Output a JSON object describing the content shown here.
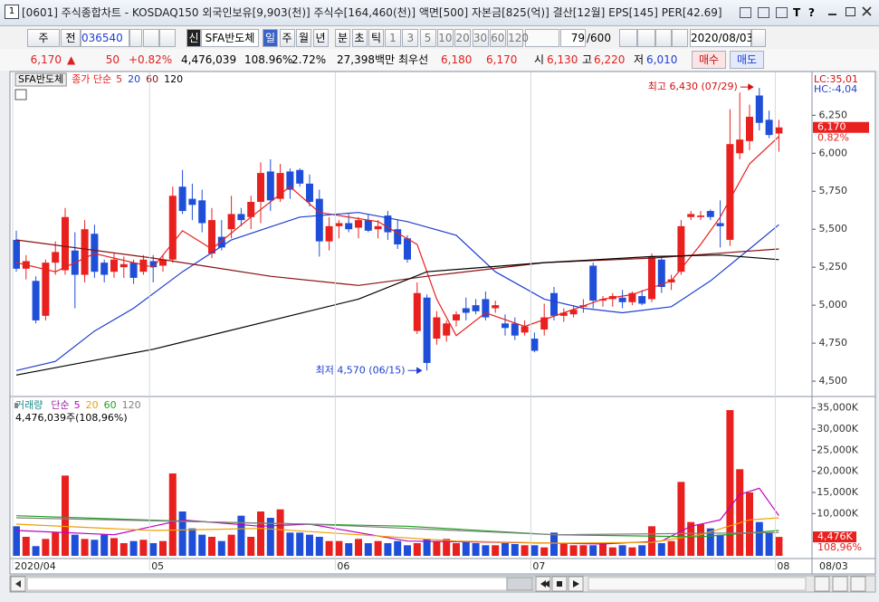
{
  "header": {
    "icon": "1",
    "title": "[0601] 주식종합차트 - KOSDAQ150 외국인보유[9,903(천)] 주식수[164,460(천)] 액면[500] 자본금[825(억)] 결산[12월] EPS[145] PER[42.69]",
    "tools": [
      "T",
      "?"
    ]
  },
  "toolbar": {
    "period": "주",
    "prev": "전",
    "code": "036540",
    "badge": "신",
    "name": "SFA반도체",
    "units": [
      "일",
      "주",
      "월",
      "년",
      "분",
      "초",
      "틱"
    ],
    "intervals": [
      "1",
      "3",
      "5",
      "10",
      "20",
      "30",
      "60",
      "120"
    ],
    "count": "79",
    "max": "/600",
    "date": "2020/08/03"
  },
  "quote": {
    "price": "6,170",
    "arrow": "▲",
    "change": "50",
    "rate": "+0.82%",
    "volume": "4,476,039",
    "volume_ratio": "108.96%",
    "turnover": "2.72%",
    "amount": "27,398백만",
    "best_label": "최우선",
    "ask": "6,180",
    "bid": "6,170",
    "open_label": "시",
    "open": "6,130",
    "high_label": "고",
    "high": "6,220",
    "low_label": "저",
    "low": "6,010",
    "buy": "매수",
    "sell": "매도"
  },
  "chart_data": [
    {
      "type": "candlestick",
      "legend_title": "SFA반도체",
      "legend_label": "종가 단순",
      "legend_label_color": "#e8201e",
      "up_color": "#e8201e",
      "down_color": "#1f4fd8",
      "open": [
        5430,
        5240,
        5160,
        4930,
        5280,
        5230,
        5360,
        5200,
        5470,
        5280,
        5220,
        5250,
        5280,
        5220,
        5290,
        5260,
        5300,
        5780,
        5700,
        5690,
        5340,
        5450,
        5500,
        5600,
        5580,
        5680,
        5880,
        5700,
        5880,
        5890,
        5800,
        5700,
        5420,
        5520,
        5540,
        5510,
        5560,
        5500,
        5590,
        5500,
        5440,
        4830,
        5050,
        4780,
        4800,
        4900,
        4980,
        5000,
        5040,
        4980,
        4880,
        4880,
        4820,
        4780,
        4840,
        5080,
        4930,
        4940,
        4990,
        5260,
        5030,
        5040,
        5050,
        5020,
        5060,
        5040,
        5300,
        5150,
        5220,
        5580,
        5580,
        5620,
        5540,
        5430,
        6000,
        6080,
        6380,
        6220,
        6130
      ],
      "high": [
        5490,
        5330,
        5190,
        5300,
        5420,
        5640,
        5480,
        5560,
        5530,
        5300,
        5340,
        5320,
        5300,
        5330,
        5330,
        5330,
        5780,
        5890,
        5800,
        5760,
        5640,
        5560,
        5720,
        5640,
        5720,
        5940,
        5960,
        5930,
        5900,
        5900,
        5860,
        5760,
        5580,
        5560,
        5600,
        5580,
        5600,
        5560,
        5620,
        5560,
        5460,
        5150,
        5070,
        4960,
        4900,
        4960,
        5050,
        5040,
        5090,
        5030,
        4940,
        4920,
        4900,
        4820,
        5010,
        5120,
        4980,
        5000,
        5040,
        5280,
        5060,
        5080,
        5100,
        5090,
        5100,
        5340,
        5320,
        5200,
        5560,
        5620,
        5620,
        5630,
        5690,
        6290,
        6400,
        6320,
        6430,
        6280,
        6220
      ],
      "low": [
        5220,
        5170,
        4880,
        4900,
        5200,
        5200,
        4980,
        5150,
        5180,
        5150,
        5180,
        5180,
        5140,
        5200,
        5150,
        5220,
        5280,
        5600,
        5560,
        5480,
        5310,
        5360,
        5440,
        5520,
        5500,
        5540,
        5620,
        5680,
        5700,
        5780,
        5650,
        5320,
        5360,
        5440,
        5480,
        5440,
        5480,
        5440,
        5430,
        5370,
        5280,
        4810,
        4570,
        4740,
        4760,
        4860,
        4900,
        4940,
        4900,
        4950,
        4800,
        4770,
        4800,
        4690,
        4800,
        4900,
        4890,
        4920,
        4950,
        4980,
        4990,
        4990,
        4980,
        5000,
        5000,
        5020,
        5080,
        5100,
        5200,
        5560,
        5560,
        5560,
        5380,
        5390,
        5960,
        6020,
        6150,
        6100,
        6010
      ],
      "close": [
        5240,
        5290,
        4900,
        5280,
        5350,
        5580,
        5200,
        5500,
        5220,
        5200,
        5300,
        5270,
        5180,
        5300,
        5250,
        5300,
        5720,
        5620,
        5660,
        5540,
        5560,
        5380,
        5600,
        5560,
        5680,
        5870,
        5690,
        5870,
        5760,
        5800,
        5680,
        5420,
        5520,
        5540,
        5500,
        5560,
        5490,
        5520,
        5480,
        5400,
        5300,
        5080,
        4620,
        4920,
        4880,
        4940,
        4950,
        4960,
        4920,
        5000,
        4850,
        4800,
        4860,
        4700,
        4920,
        4930,
        4950,
        4970,
        5000,
        5030,
        5040,
        5060,
        5020,
        5080,
        5010,
        5320,
        5120,
        5170,
        5520,
        5600,
        5590,
        5580,
        5520,
        6060,
        6090,
        6240,
        6200,
        6120,
        6170
      ],
      "series": [
        {
          "name": "5",
          "color": "#e8201e",
          "x": [
            0,
            4,
            8,
            14,
            17,
            20,
            24,
            28,
            31,
            37,
            41,
            43,
            45,
            48,
            52,
            56,
            60,
            63,
            67,
            70,
            72,
            75,
            78
          ],
          "values": [
            5280,
            5220,
            5340,
            5250,
            5490,
            5370,
            5580,
            5780,
            5610,
            5550,
            5400,
            5040,
            4800,
            4950,
            4860,
            4950,
            5040,
            5070,
            5160,
            5400,
            5580,
            5930,
            6110
          ]
        },
        {
          "name": "20",
          "color": "#1f3fd0",
          "x": [
            0,
            4,
            8,
            12,
            17,
            22,
            29,
            35,
            40,
            45,
            49,
            54,
            58,
            62,
            67,
            71,
            75,
            78
          ],
          "values": [
            4570,
            4630,
            4830,
            4980,
            5220,
            5430,
            5580,
            5610,
            5550,
            5460,
            5220,
            5040,
            4980,
            4950,
            4990,
            5160,
            5370,
            5530
          ]
        },
        {
          "name": "60",
          "color": "#8b1010",
          "x": [
            0,
            14,
            26,
            35,
            42,
            54,
            65,
            78
          ],
          "values": [
            5430,
            5310,
            5190,
            5130,
            5190,
            5280,
            5310,
            5370
          ]
        },
        {
          "name": "120",
          "color": "#000000",
          "x": [
            0,
            14,
            35,
            42,
            54,
            65,
            72,
            78
          ],
          "values": [
            4540,
            4710,
            5040,
            5220,
            5280,
            5320,
            5330,
            5300
          ]
        }
      ],
      "ylim": [
        4405,
        6520
      ],
      "yticks": [
        {
          "value": 4500,
          "label": "4,500"
        },
        {
          "value": 4750,
          "label": "4,750"
        },
        {
          "value": 5000,
          "label": "5,000"
        },
        {
          "value": 5250,
          "label": "5,250"
        },
        {
          "value": 5500,
          "label": "5,500"
        },
        {
          "value": 5750,
          "label": "5,750"
        },
        {
          "value": 6000,
          "label": "6,000"
        },
        {
          "value": 6250,
          "label": "6,250"
        }
      ],
      "high_label": "최고 6,430 (07/29)",
      "low_label": "최저 4,570 (06/15)",
      "lc_label": "LC:35,01",
      "hc_label": "HC:-4,04",
      "last_label": "6,170",
      "change_label": "0.82%"
    },
    {
      "type": "bar",
      "legend_title": "거래량",
      "legend_title_color": "#1a8a8a",
      "legend_label": "단순",
      "legend_label_color": "#a020a0",
      "info": "4,476,039주(108,96%)",
      "up_color": "#e8201e",
      "down_color": "#1f4fd8",
      "values": [
        7000,
        4500,
        2300,
        4000,
        5500,
        19000,
        5000,
        4000,
        3800,
        5000,
        4200,
        3000,
        3500,
        3800,
        3000,
        3500,
        19500,
        10500,
        6500,
        5000,
        4500,
        3500,
        5000,
        9500,
        4500,
        10500,
        9000,
        11000,
        5500,
        5500,
        5000,
        4500,
        3500,
        3500,
        3000,
        4000,
        3000,
        3500,
        3000,
        3500,
        2500,
        3000,
        4000,
        3500,
        4000,
        3000,
        3500,
        3000,
        2500,
        2500,
        3000,
        2800,
        2500,
        2500,
        2000,
        5500,
        3000,
        2500,
        2500,
        2500,
        3000,
        2000,
        2500,
        2000,
        2500,
        7000,
        3000,
        3500,
        17500,
        8000,
        7500,
        6500,
        5000,
        34500,
        20500,
        15000,
        8000,
        5500,
        4476
      ],
      "series": [
        {
          "name": "5",
          "color": "#c000c0",
          "x": [
            0,
            10,
            17,
            25,
            30,
            40,
            50,
            60,
            66,
            69,
            72,
            74,
            76,
            78
          ],
          "values": [
            6000,
            5000,
            8500,
            7000,
            7500,
            3500,
            3200,
            2800,
            3500,
            7000,
            8500,
            14500,
            16000,
            9500
          ]
        },
        {
          "name": "20",
          "color": "#f0a000",
          "x": [
            0,
            14,
            25,
            35,
            45,
            55,
            65,
            70,
            75,
            78
          ],
          "values": [
            7500,
            6000,
            6500,
            5000,
            3500,
            3000,
            3200,
            5000,
            8500,
            9000
          ]
        },
        {
          "name": "60",
          "color": "#20a020",
          "x": [
            0,
            20,
            40,
            55,
            70,
            78
          ],
          "values": [
            9500,
            8000,
            7000,
            5000,
            4500,
            6000
          ]
        },
        {
          "name": "120",
          "color": "#808080",
          "x": [
            0,
            30,
            55,
            78
          ],
          "values": [
            9000,
            7500,
            5000,
            5500
          ]
        }
      ],
      "ylim": [
        0,
        37500
      ],
      "yticks": [
        {
          "value": 10000,
          "label": "10,000K"
        },
        {
          "value": 15000,
          "label": "15,000K"
        },
        {
          "value": 20000,
          "label": "20,000K"
        },
        {
          "value": 25000,
          "label": "25,000K"
        },
        {
          "value": 30000,
          "label": "30,000K"
        },
        {
          "value": 35000,
          "label": "35,000K"
        }
      ],
      "xticks": [
        {
          "value": 0,
          "label": "2020/04"
        },
        {
          "value": 14,
          "label": "05"
        },
        {
          "value": 33,
          "label": "06"
        },
        {
          "value": 53,
          "label": "07"
        },
        {
          "value": 78,
          "label": "08"
        }
      ],
      "x_end_label": "08/03",
      "last_label": "4,476K",
      "ratio_label": "108,96%"
    }
  ]
}
